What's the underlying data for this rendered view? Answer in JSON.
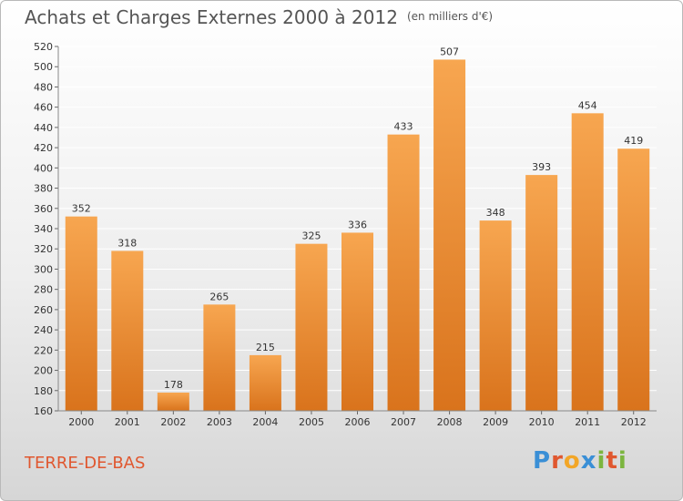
{
  "header": {
    "title": "Achats et Charges Externes 2000 à 2012",
    "subtitle": "(en milliers d'€)"
  },
  "footer": {
    "commune": "TERRE-DE-BAS",
    "logo_text": "Proxiti",
    "logo_colors": [
      "#3a8fd6",
      "#e0572f",
      "#f2a627",
      "#3a8fd6",
      "#7cb53f",
      "#e0572f",
      "#7cb53f"
    ]
  },
  "colors": {
    "bar_top": "#f7a650",
    "bar_bottom": "#d9731c",
    "grid": "#ffffff",
    "axis_text": "#333333"
  },
  "chart_data": {
    "type": "bar",
    "title": "Achats et Charges Externes 2000 à 2012",
    "subtitle": "(en milliers d'€)",
    "categories": [
      "2000",
      "2001",
      "2002",
      "2003",
      "2004",
      "2005",
      "2006",
      "2007",
      "2008",
      "2009",
      "2010",
      "2011",
      "2012"
    ],
    "values": [
      352,
      318,
      178,
      265,
      215,
      325,
      336,
      433,
      507,
      348,
      393,
      454,
      419
    ],
    "ylim": [
      160,
      520
    ],
    "yticks": [
      160,
      180,
      200,
      220,
      240,
      260,
      280,
      300,
      320,
      340,
      360,
      380,
      400,
      420,
      440,
      460,
      480,
      500,
      520
    ],
    "xlabel": "",
    "ylabel": "",
    "grid": true,
    "data_labels": true
  }
}
